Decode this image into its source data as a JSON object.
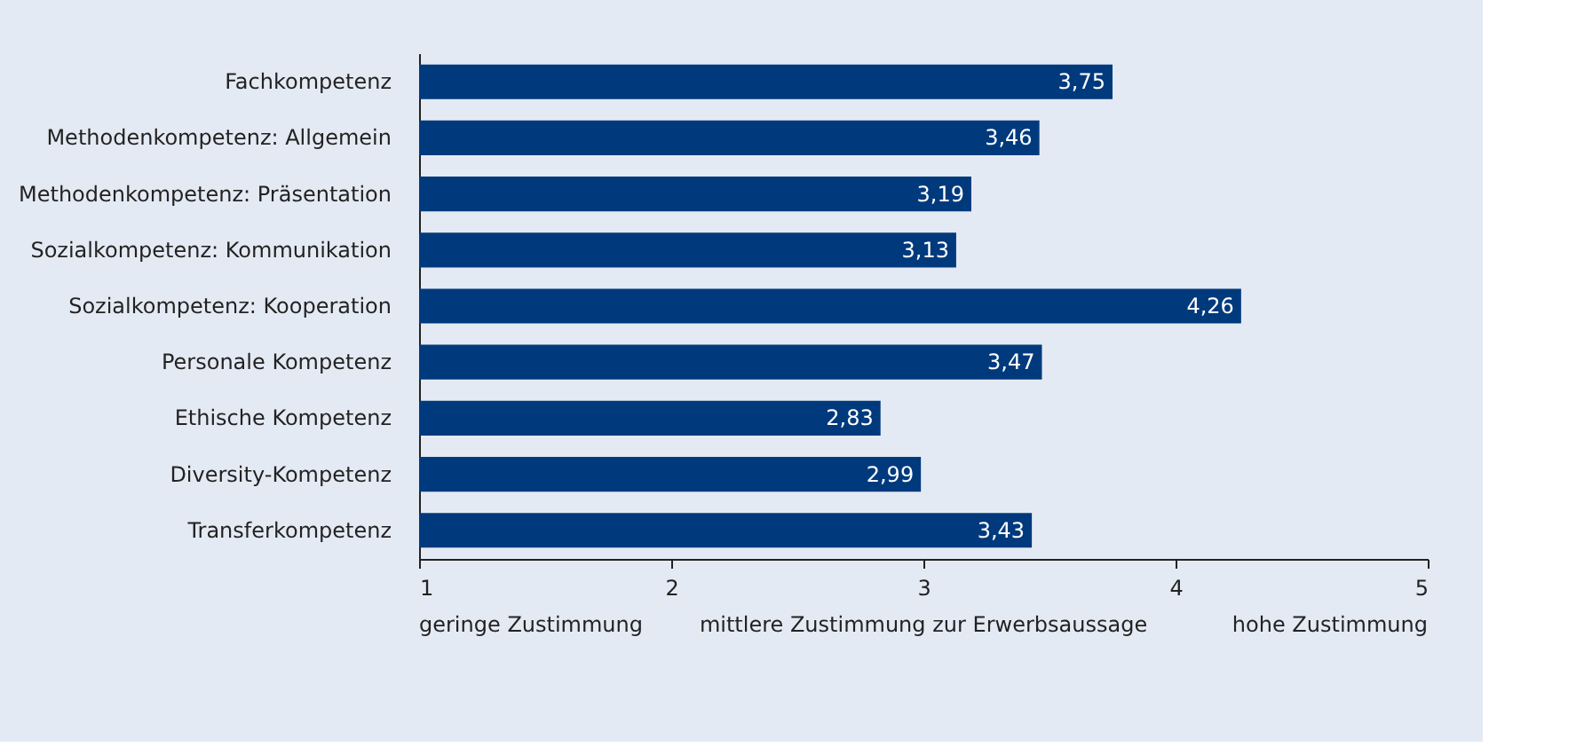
{
  "chart_data": {
    "type": "bar",
    "orientation": "horizontal",
    "categories": [
      "Fachkompetenz",
      "Methodenkompetenz: Allgemein",
      "Methodenkompetenz: Präsentation",
      "Sozialkompetenz: Kommunikation",
      "Sozialkompetenz: Kooperation",
      "Personale Kompetenz",
      "Ethische Kompetenz",
      "Diversity-Kompetenz",
      "Transferkompetenz"
    ],
    "values": [
      3.75,
      3.46,
      3.19,
      3.13,
      4.26,
      3.47,
      2.83,
      2.99,
      3.43
    ],
    "value_labels": [
      "3,75",
      "3,46",
      "3,19",
      "3,13",
      "4,26",
      "3,47",
      "2,83",
      "2,99",
      "3,43"
    ],
    "color": "#003a7d",
    "xlim": [
      1,
      5
    ],
    "xticks": [
      1,
      2,
      3,
      4,
      5
    ],
    "grid": false,
    "annotations": [
      "geringe Zustimmung",
      "mittlere Zustimmung zur Erwerbsaussage",
      "hohe Zustimmung"
    ]
  }
}
